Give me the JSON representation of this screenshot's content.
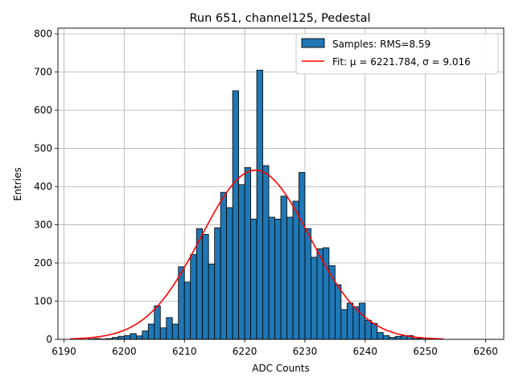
{
  "chart_data": {
    "type": "bar",
    "title": "Run 651, channel125, Pedestal",
    "xlabel": "ADC Counts",
    "ylabel": "Entries",
    "xlim": [
      6189,
      6263
    ],
    "ylim": [
      0,
      815
    ],
    "grid": true,
    "bin_width": 1,
    "x_ticks": [
      6190,
      6200,
      6210,
      6220,
      6230,
      6240,
      6250,
      6260
    ],
    "y_ticks": [
      0,
      100,
      200,
      300,
      400,
      500,
      600,
      700,
      800
    ],
    "legend": {
      "placement": "top-right",
      "entries": [
        {
          "label": "Samples: RMS=8.59",
          "kind": "patch",
          "color": "#1f77b4"
        },
        {
          "label": "Fit: μ = 6221.784, σ = 9.016",
          "kind": "line",
          "color": "#ff0000"
        }
      ]
    },
    "bar_color": "#1f77b4",
    "edge_color": "#000000",
    "fit_color": "#ff0000",
    "histogram": {
      "bin_starts": [
        6190,
        6191,
        6192,
        6193,
        6194,
        6195,
        6196,
        6197,
        6198,
        6199,
        6200,
        6201,
        6202,
        6203,
        6204,
        6205,
        6206,
        6207,
        6208,
        6209,
        6210,
        6211,
        6212,
        6213,
        6214,
        6215,
        6216,
        6217,
        6218,
        6219,
        6220,
        6221,
        6222,
        6223,
        6224,
        6225,
        6226,
        6227,
        6228,
        6229,
        6230,
        6231,
        6232,
        6233,
        6234,
        6235,
        6236,
        6237,
        6238,
        6239,
        6240,
        6241,
        6242,
        6243,
        6244,
        6245,
        6246,
        6247,
        6248,
        6249,
        6250,
        6251,
        6252
      ],
      "counts": [
        0,
        0,
        0,
        0,
        1,
        2,
        1,
        2,
        5,
        8,
        10,
        15,
        9,
        22,
        40,
        88,
        30,
        57,
        40,
        190,
        150,
        222,
        290,
        275,
        197,
        292,
        385,
        345,
        651,
        405,
        450,
        315,
        705,
        455,
        320,
        315,
        375,
        320,
        362,
        437,
        290,
        215,
        237,
        240,
        193,
        143,
        78,
        95,
        85,
        95,
        50,
        42,
        18,
        10,
        5,
        8,
        10,
        10,
        2,
        3,
        1,
        0,
        0
      ]
    },
    "fit": {
      "mu": 6221.784,
      "sigma": 9.016,
      "amplitude": 443,
      "x_range": [
        6191,
        6253
      ]
    }
  }
}
